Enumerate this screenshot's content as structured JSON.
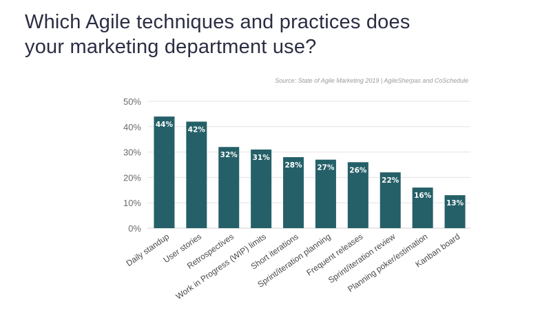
{
  "title_lines": [
    "Which Agile techniques and practices does",
    "your marketing department use?"
  ],
  "source": "Source: State of Agile Marketing 2019 | AgileSherpas and CoSchedule",
  "colors": {
    "bar": "#256068",
    "grid": "#e3e3e3",
    "title": "#2b2d42"
  },
  "chart_data": {
    "type": "bar",
    "categories": [
      "Daily standup",
      "User stories",
      "Retrospectives",
      "Work in Progress (WIP) limits",
      "Short iterations",
      "Sprint/iteration planning",
      "Frequent releases",
      "Sprint/iteration review",
      "Planning poker/estimation",
      "Kanban board"
    ],
    "values": [
      44,
      42,
      32,
      31,
      28,
      27,
      26,
      22,
      16,
      13
    ],
    "data_labels": [
      "44%",
      "42%",
      "32%",
      "31%",
      "28%",
      "27%",
      "26%",
      "22%",
      "16%",
      "13%"
    ],
    "y_ticks": [
      "0%",
      "10%",
      "20%",
      "30%",
      "40%",
      "50%"
    ],
    "y_tick_values": [
      0,
      10,
      20,
      30,
      40,
      50
    ],
    "ylim": [
      0,
      50
    ],
    "grid": true,
    "legend": "none"
  }
}
